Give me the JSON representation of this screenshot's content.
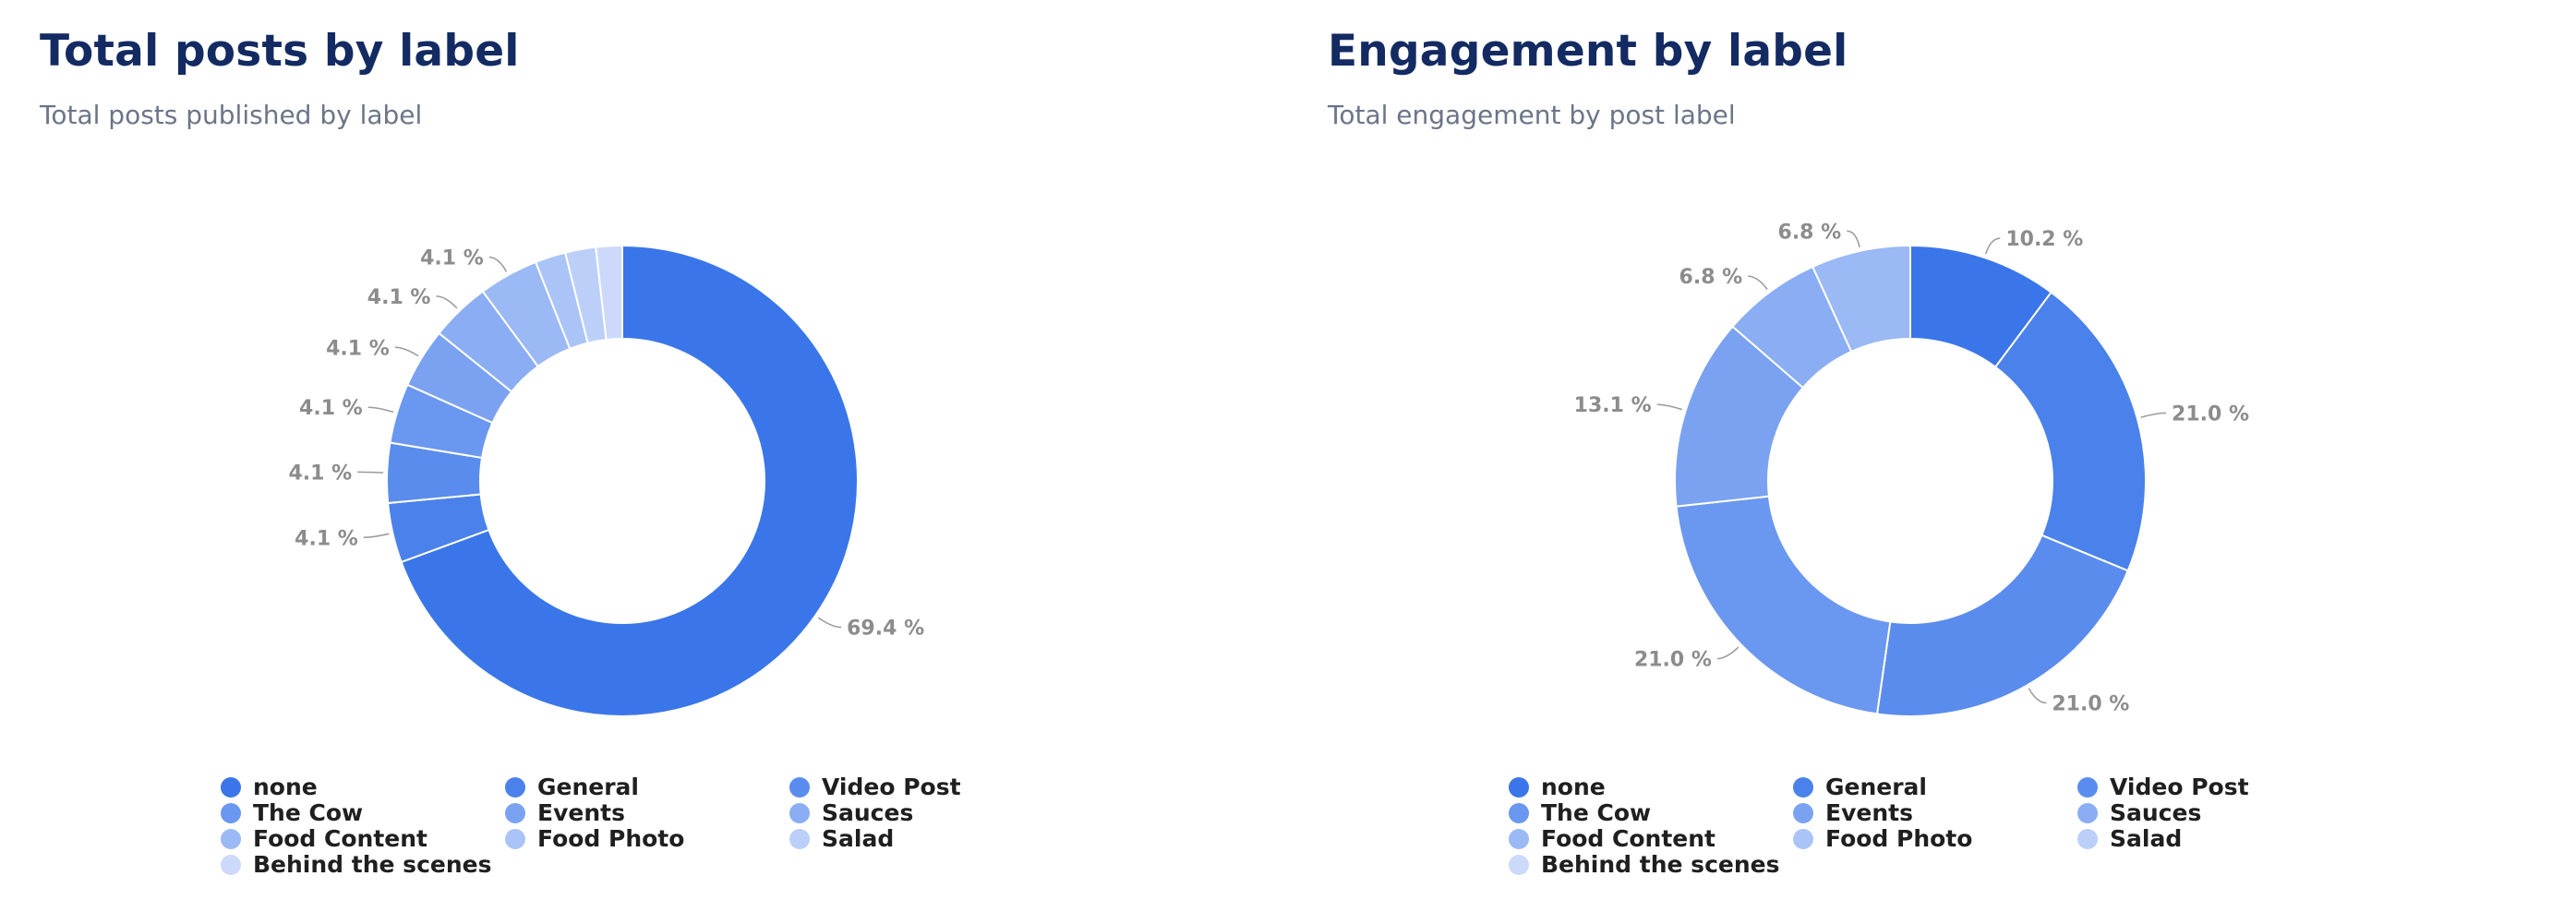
{
  "labels": [
    "none",
    "General",
    "Video Post",
    "The Cow",
    "Events",
    "Sauces",
    "Food Content",
    "Food Photo",
    "Salad",
    "Behind the scenes"
  ],
  "colors": [
    "#3a76e9",
    "#4a81eb",
    "#5a8ced",
    "#6a97ef",
    "#7aa2f1",
    "#8aadf3",
    "#9bb9f5",
    "#abc4f7",
    "#bccff9",
    "#cdd9fb"
  ],
  "chart_data": [
    {
      "type": "pie",
      "title": "Total posts by label",
      "subtitle": "Total posts published by label",
      "categories": [
        "none",
        "General",
        "Video Post",
        "The Cow",
        "Events",
        "Sauces",
        "Food Content",
        "Food Photo",
        "Salad",
        "Behind the scenes"
      ],
      "values": [
        69.4,
        4.1,
        4.1,
        4.1,
        4.1,
        4.1,
        4.1,
        2.1,
        2.1,
        1.8
      ],
      "data_labels": [
        "69.4 %",
        "4.1 %",
        "4.1 %",
        "4.1 %",
        "4.1 %",
        "4.1 %",
        "4.1 %",
        "",
        "",
        ""
      ],
      "donut": true,
      "legend_position": "bottom"
    },
    {
      "type": "pie",
      "title": "Engagement by label",
      "subtitle": "Total engagement by post label",
      "categories": [
        "none",
        "General",
        "Video Post",
        "The Cow",
        "Events",
        "Sauces",
        "Food Content",
        "Food Photo",
        "Salad",
        "Behind the scenes"
      ],
      "values": [
        10.2,
        21.0,
        21.0,
        21.0,
        13.1,
        6.8,
        6.8,
        0,
        0,
        0
      ],
      "data_labels": [
        "10.2 %",
        "21.0 %",
        "21.0 %",
        "21.0 %",
        "13.1 %",
        "6.8 %",
        "6.8 %",
        "",
        "",
        ""
      ],
      "donut": true,
      "legend_position": "bottom"
    }
  ]
}
